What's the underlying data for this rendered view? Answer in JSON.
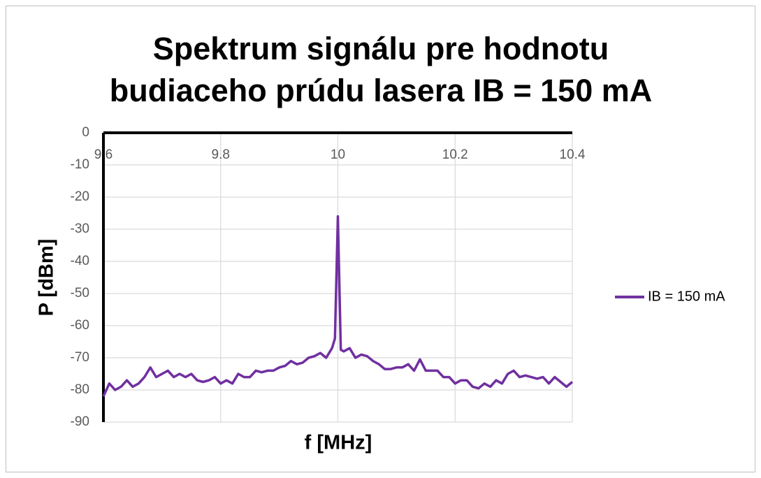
{
  "chart_data": {
    "type": "line",
    "title": [
      "Spektrum signálu pre hodnotu",
      "budiaceho prúdu lasera IB = 150 mA"
    ],
    "x_label": "f [MHz]",
    "y_label": "P [dBm]",
    "xlim": [
      9.6,
      10.4
    ],
    "xticks": [
      9.6,
      9.8,
      10,
      10.2,
      10.4
    ],
    "ylim": [
      -90,
      0
    ],
    "yticks": [
      0,
      -10,
      -20,
      -30,
      -40,
      -50,
      -60,
      -70,
      -80,
      -90
    ],
    "grid": true,
    "legend": "right",
    "x": [
      9.6,
      9.61,
      9.62,
      9.63,
      9.64,
      9.65,
      9.66,
      9.67,
      9.68,
      9.69,
      9.7,
      9.71,
      9.72,
      9.73,
      9.74,
      9.75,
      9.76,
      9.77,
      9.78,
      9.79,
      9.8,
      9.81,
      9.82,
      9.83,
      9.84,
      9.85,
      9.86,
      9.87,
      9.88,
      9.89,
      9.9,
      9.91,
      9.92,
      9.93,
      9.94,
      9.95,
      9.96,
      9.97,
      9.98,
      9.99,
      9.995,
      10,
      10.005,
      10.01,
      10.02,
      10.03,
      10.04,
      10.05,
      10.06,
      10.07,
      10.08,
      10.09,
      10.1,
      10.11,
      10.12,
      10.13,
      10.14,
      10.15,
      10.16,
      10.17,
      10.18,
      10.19,
      10.2,
      10.21,
      10.22,
      10.23,
      10.24,
      10.25,
      10.26,
      10.27,
      10.28,
      10.29,
      10.3,
      10.31,
      10.32,
      10.33,
      10.34,
      10.35,
      10.36,
      10.37,
      10.38,
      10.39,
      10.4
    ],
    "series": [
      {
        "name": "IB = 150 mA",
        "color": "#7030a0",
        "values": [
          -82,
          -78,
          -80,
          -79,
          -77,
          -79,
          -78,
          -76,
          -73,
          -76,
          -75,
          -74,
          -76,
          -75,
          -76,
          -75,
          -77,
          -77.5,
          -77,
          -76,
          -78,
          -77,
          -78,
          -75,
          -76,
          -76,
          -74,
          -74.5,
          -74,
          -74,
          -73,
          -72.5,
          -71,
          -72,
          -71.5,
          -70,
          -69.5,
          -68.5,
          -70,
          -67,
          -64,
          -26,
          -67.5,
          -68,
          -67,
          -70,
          -69,
          -69.5,
          -71,
          -72,
          -73.5,
          -73.5,
          -73,
          -73,
          -72,
          -74,
          -70.5,
          -74,
          -74,
          -74,
          -76,
          -76,
          -78,
          -77,
          -77,
          -79,
          -79.5,
          -78,
          -79,
          -77,
          -78,
          -75,
          -74,
          -76,
          -75.5,
          -76,
          -76.5,
          -76,
          -78,
          -76,
          -77.5,
          -79,
          -77.5
        ]
      }
    ]
  }
}
